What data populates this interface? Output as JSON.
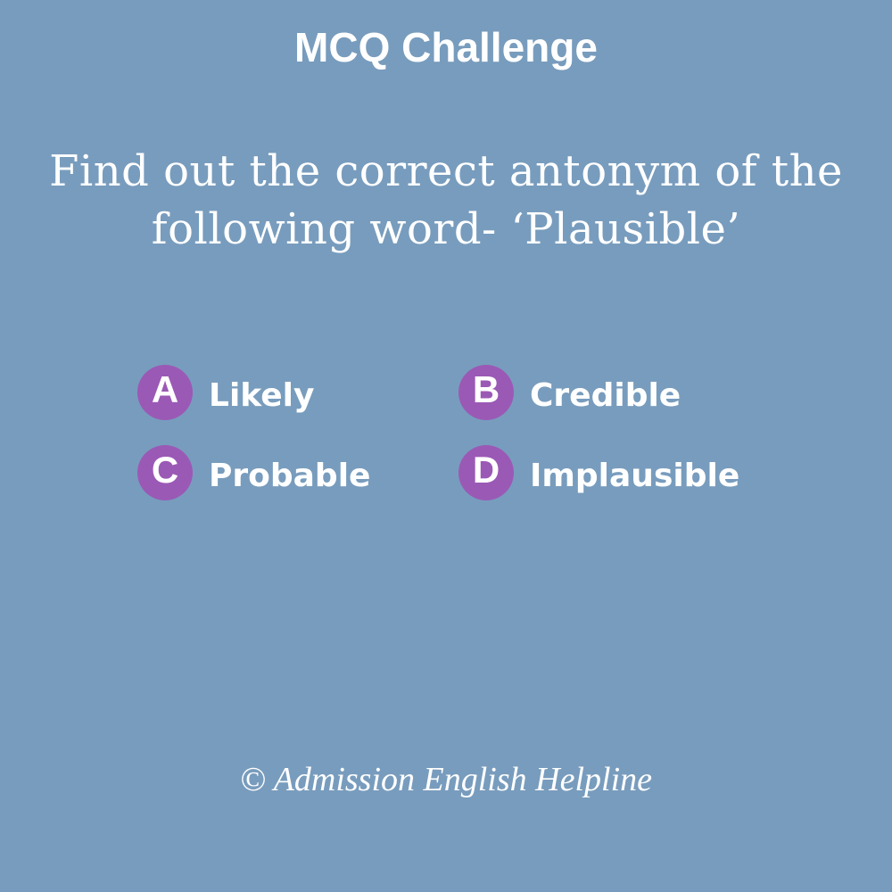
{
  "title": "MCQ Challenge",
  "question": {
    "line1": "Find out the correct antonym of the",
    "line2": "following word- ‘Plausible’"
  },
  "options": [
    {
      "letter": "A",
      "text": "Likely"
    },
    {
      "letter": "B",
      "text": "Credible"
    },
    {
      "letter": "C",
      "text": "Probable"
    },
    {
      "letter": "D",
      "text": "Implausible"
    }
  ],
  "footer": "© Admission English Helpline",
  "colors": {
    "background": "#789cbd",
    "badge": "#9b59b6",
    "text": "#ffffff"
  }
}
